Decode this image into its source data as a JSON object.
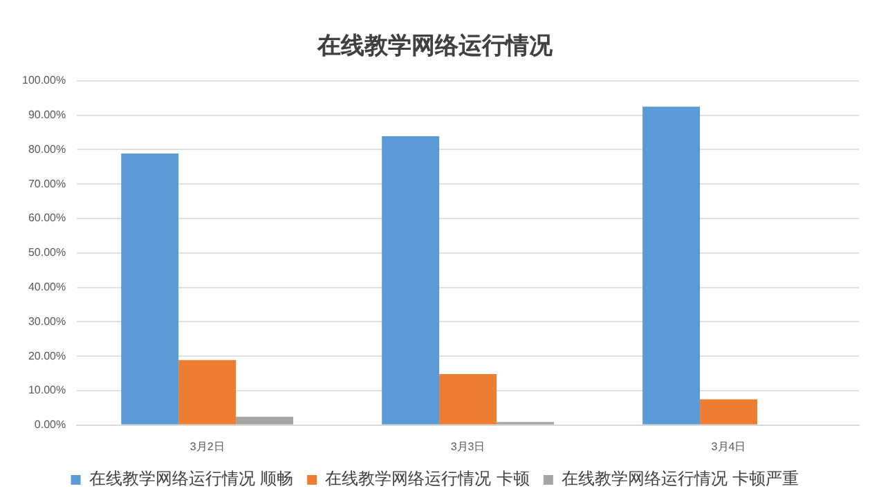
{
  "chart_data": {
    "type": "bar",
    "title": "在线教学网络运行情况",
    "categories": [
      "3月2日",
      "3月3日",
      "3月4日"
    ],
    "series": [
      {
        "name": "在线教学网络运行情况 顺畅",
        "color": "#5b9bd5",
        "values": [
          78.9,
          83.9,
          92.5
        ]
      },
      {
        "name": "在线教学网络运行情况 卡顿",
        "color": "#ed7d31",
        "values": [
          18.9,
          14.8,
          7.5
        ]
      },
      {
        "name": "在线教学网络运行情况 卡顿严重",
        "color": "#a5a5a5",
        "values": [
          2.4,
          0.9,
          0
        ]
      }
    ],
    "ylim": [
      0,
      100
    ],
    "yticks": [
      {
        "value": 0,
        "label": "0.00%"
      },
      {
        "value": 10,
        "label": "10.00%"
      },
      {
        "value": 20,
        "label": "20.00%"
      },
      {
        "value": 30,
        "label": "30.00%"
      },
      {
        "value": 40,
        "label": "40.00%"
      },
      {
        "value": 50,
        "label": "50.00%"
      },
      {
        "value": 60,
        "label": "60.00%"
      },
      {
        "value": 70,
        "label": "70.00%"
      },
      {
        "value": 80,
        "label": "80.00%"
      },
      {
        "value": 90,
        "label": "90.00%"
      },
      {
        "value": 100,
        "label": "100.00%"
      }
    ],
    "grid": "y",
    "legend": "bottom"
  }
}
